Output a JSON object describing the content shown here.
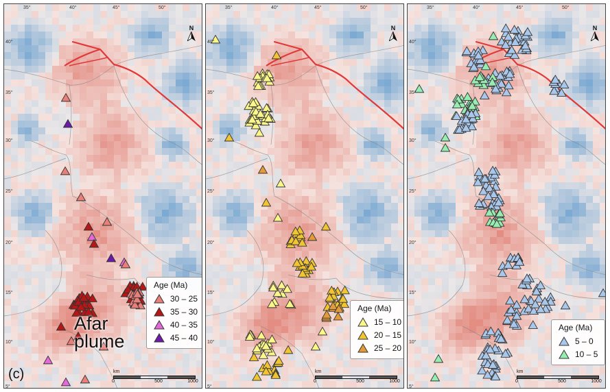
{
  "figure": {
    "panel_letter": "(c)",
    "annotation": [
      "Afar",
      "plume"
    ],
    "north_label": "N",
    "lon_ticks": [
      "35°",
      "40°",
      "45°",
      "50°"
    ],
    "lat_ticks": [
      "40°",
      "35°",
      "30°",
      "25°",
      "20°",
      "15°",
      "10°",
      "5°"
    ],
    "scale": {
      "unit": "km",
      "labels": [
        "0",
        "500",
        "1000"
      ]
    },
    "colors": {
      "slow_anomaly": "#e8a79e",
      "fast_anomaly": "#9dbfdc",
      "fault_line": "#e0393a",
      "borders": "#8a8a8a"
    }
  },
  "panels": [
    {
      "id": "panel-30-45ma",
      "legend_title": "Age (Ma)",
      "legend": [
        {
          "label": "30 – 25",
          "color": "#e8807a"
        },
        {
          "label": "35 – 30",
          "color": "#b51616"
        },
        {
          "label": "40 – 35",
          "color": "#e36ad6"
        },
        {
          "label": "45 – 40",
          "color": "#6e1aa8"
        }
      ]
    },
    {
      "id": "panel-10-25ma",
      "legend_title": "Age (Ma)",
      "legend": [
        {
          "label": "15 – 10",
          "color": "#fbf68a"
        },
        {
          "label": "20 – 15",
          "color": "#f0c531"
        },
        {
          "label": "25 – 20",
          "color": "#e39a3b"
        }
      ]
    },
    {
      "id": "panel-0-10ma",
      "legend_title": "Age (Ma)",
      "legend": [
        {
          "label": "5 – 0",
          "color": "#a9c7ea"
        },
        {
          "label": "10 – 5",
          "color": "#97ecb1"
        }
      ]
    }
  ]
}
